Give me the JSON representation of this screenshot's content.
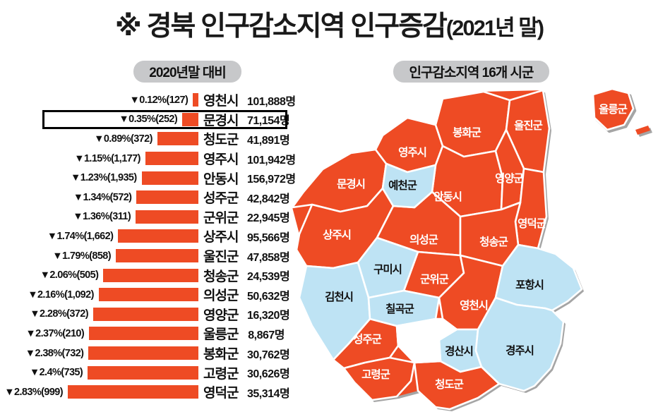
{
  "page_title": {
    "main": "※ 경북 인구감소지역 인구증감",
    "suffix": "(2021년 말)"
  },
  "left_panel": {
    "header_pill": "2020년말 대비"
  },
  "right_panel": {
    "header_pill": "인구감소지역 16개 시군"
  },
  "colors": {
    "decline_orange": "#EE4B24",
    "normal_blue": "#BEE3F4",
    "pill_gray": "#C7C8CA",
    "highlight_border": "#000000",
    "map_shadow": "#A5A5A5",
    "label_on_decline": "#FFFFFF",
    "label_on_normal": "#111111"
  },
  "chart_data": {
    "type": "bar",
    "orientation": "horizontal",
    "title": "※ 경북 인구감소지역 인구증감(2021년 말)",
    "header": "2020년말 대비",
    "unit": "%",
    "max_pct": 2.83,
    "rows": [
      {
        "region": "영천시",
        "change_label": "▼0.12%(127)",
        "pct_decline": 0.12,
        "decline_count": 127,
        "population_label": "101,888명",
        "population": 101888,
        "highlighted": false
      },
      {
        "region": "문경시",
        "change_label": "▼0.35%(252)",
        "pct_decline": 0.35,
        "decline_count": 252,
        "population_label": "71,154명",
        "population": 71154,
        "highlighted": true
      },
      {
        "region": "청도군",
        "change_label": "▼0.89%(372)",
        "pct_decline": 0.89,
        "decline_count": 372,
        "population_label": "41,891명",
        "population": 41891,
        "highlighted": false
      },
      {
        "region": "영주시",
        "change_label": "▼1.15%(1,177)",
        "pct_decline": 1.15,
        "decline_count": 1177,
        "population_label": "101,942명",
        "population": 101942,
        "highlighted": false
      },
      {
        "region": "안동시",
        "change_label": "▼1.23%(1,935)",
        "pct_decline": 1.23,
        "decline_count": 1935,
        "population_label": "156,972명",
        "population": 156972,
        "highlighted": false
      },
      {
        "region": "성주군",
        "change_label": "▼1.34%(572)",
        "pct_decline": 1.34,
        "decline_count": 572,
        "population_label": "42,842명",
        "population": 42842,
        "highlighted": false
      },
      {
        "region": "군위군",
        "change_label": "▼1.36%(311)",
        "pct_decline": 1.36,
        "decline_count": 311,
        "population_label": "22,945명",
        "population": 22945,
        "highlighted": false
      },
      {
        "region": "상주시",
        "change_label": "▼1.74%(1,662)",
        "pct_decline": 1.74,
        "decline_count": 1662,
        "population_label": "95,566명",
        "population": 95566,
        "highlighted": false
      },
      {
        "region": "울진군",
        "change_label": "▼1.79%(858)",
        "pct_decline": 1.79,
        "decline_count": 858,
        "population_label": "47,858명",
        "population": 47858,
        "highlighted": false
      },
      {
        "region": "청송군",
        "change_label": "▼2.06%(505)",
        "pct_decline": 2.06,
        "decline_count": 505,
        "population_label": "24,539명",
        "population": 24539,
        "highlighted": false
      },
      {
        "region": "의성군",
        "change_label": "▼2.16%(1,092)",
        "pct_decline": 2.16,
        "decline_count": 1092,
        "population_label": "50,632명",
        "population": 50632,
        "highlighted": false
      },
      {
        "region": "영양군",
        "change_label": "▼2.28%(372)",
        "pct_decline": 2.28,
        "decline_count": 372,
        "population_label": "16,320명",
        "population": 16320,
        "highlighted": false
      },
      {
        "region": "울릉군",
        "change_label": "▼2.37%(210)",
        "pct_decline": 2.37,
        "decline_count": 210,
        "population_label": "8,867명",
        "population": 8867,
        "highlighted": false
      },
      {
        "region": "봉화군",
        "change_label": "▼2.38%(732)",
        "pct_decline": 2.38,
        "decline_count": 732,
        "population_label": "30,762명",
        "population": 30762,
        "highlighted": false
      },
      {
        "region": "고령군",
        "change_label": "▼2.4%(735)",
        "pct_decline": 2.4,
        "decline_count": 735,
        "population_label": "30,626명",
        "population": 30626,
        "highlighted": false
      },
      {
        "region": "영덕군",
        "change_label": "▼2.83%(999)",
        "pct_decline": 2.83,
        "decline_count": 999,
        "population_label": "35,314명",
        "population": 35314,
        "highlighted": false
      }
    ]
  },
  "map": {
    "header": "인구감소지역 16개 시군",
    "regions": [
      {
        "id": "mungyeong",
        "name": "문경시",
        "status": "decline"
      },
      {
        "id": "yeongju",
        "name": "영주시",
        "status": "decline"
      },
      {
        "id": "bonghwa",
        "name": "봉화군",
        "status": "decline"
      },
      {
        "id": "uljin",
        "name": "울진군",
        "status": "decline"
      },
      {
        "id": "yecheon",
        "name": "예천군",
        "status": "normal"
      },
      {
        "id": "andong",
        "name": "안동시",
        "status": "decline"
      },
      {
        "id": "yeongyang",
        "name": "영양군",
        "status": "decline"
      },
      {
        "id": "yeongdeok",
        "name": "영덕군",
        "status": "decline"
      },
      {
        "id": "sangju",
        "name": "상주시",
        "status": "decline"
      },
      {
        "id": "uiseong",
        "name": "의성군",
        "status": "decline"
      },
      {
        "id": "cheongsong",
        "name": "청송군",
        "status": "decline"
      },
      {
        "id": "gumi",
        "name": "구미시",
        "status": "normal"
      },
      {
        "id": "gunwi",
        "name": "군위군",
        "status": "decline"
      },
      {
        "id": "gimcheon",
        "name": "김천시",
        "status": "normal"
      },
      {
        "id": "chilgok",
        "name": "칠곡군",
        "status": "normal"
      },
      {
        "id": "yeongcheon",
        "name": "영천시",
        "status": "decline"
      },
      {
        "id": "pohang",
        "name": "포항시",
        "status": "normal"
      },
      {
        "id": "seongju",
        "name": "성주군",
        "status": "decline"
      },
      {
        "id": "gyeongsan",
        "name": "경산시",
        "status": "normal"
      },
      {
        "id": "gyeongju",
        "name": "경주시",
        "status": "normal"
      },
      {
        "id": "goryeong",
        "name": "고령군",
        "status": "decline"
      },
      {
        "id": "cheongdo",
        "name": "청도군",
        "status": "decline"
      },
      {
        "id": "ulleung",
        "name": "울릉군",
        "status": "decline"
      }
    ]
  }
}
